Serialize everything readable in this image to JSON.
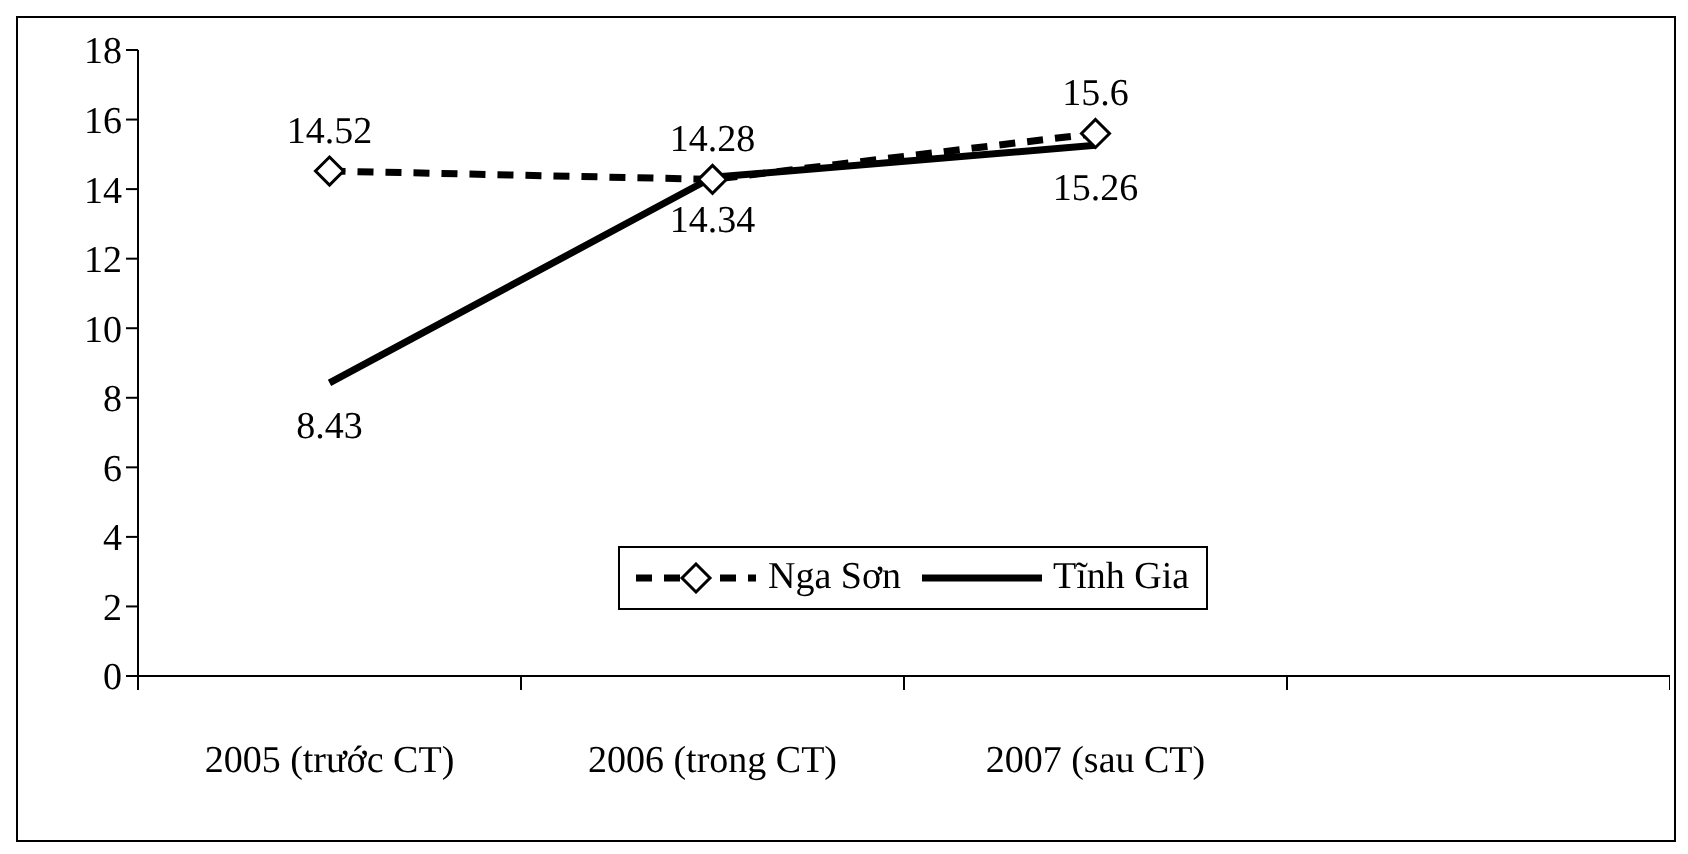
{
  "chart_data": {
    "type": "line",
    "categories": [
      "2005 (trước CT)",
      "2006 (trong CT)",
      "2007 (sau CT)",
      null
    ],
    "series": [
      {
        "name": "Nga Sơn",
        "color": "#000000",
        "values": [
          14.52,
          14.28,
          15.6,
          null
        ],
        "marker": "diamond",
        "line_style": "dashed"
      },
      {
        "name": "Tĩnh Gia",
        "color": "#000000",
        "values": [
          8.43,
          14.34,
          15.26,
          null
        ],
        "marker": "none",
        "line_style": "solid"
      }
    ],
    "ylim": [
      0,
      18
    ],
    "yticks": [
      0,
      2,
      4,
      6,
      8,
      10,
      12,
      14,
      16,
      18
    ],
    "data_labels": true,
    "legend": "bottom",
    "grid": false
  }
}
